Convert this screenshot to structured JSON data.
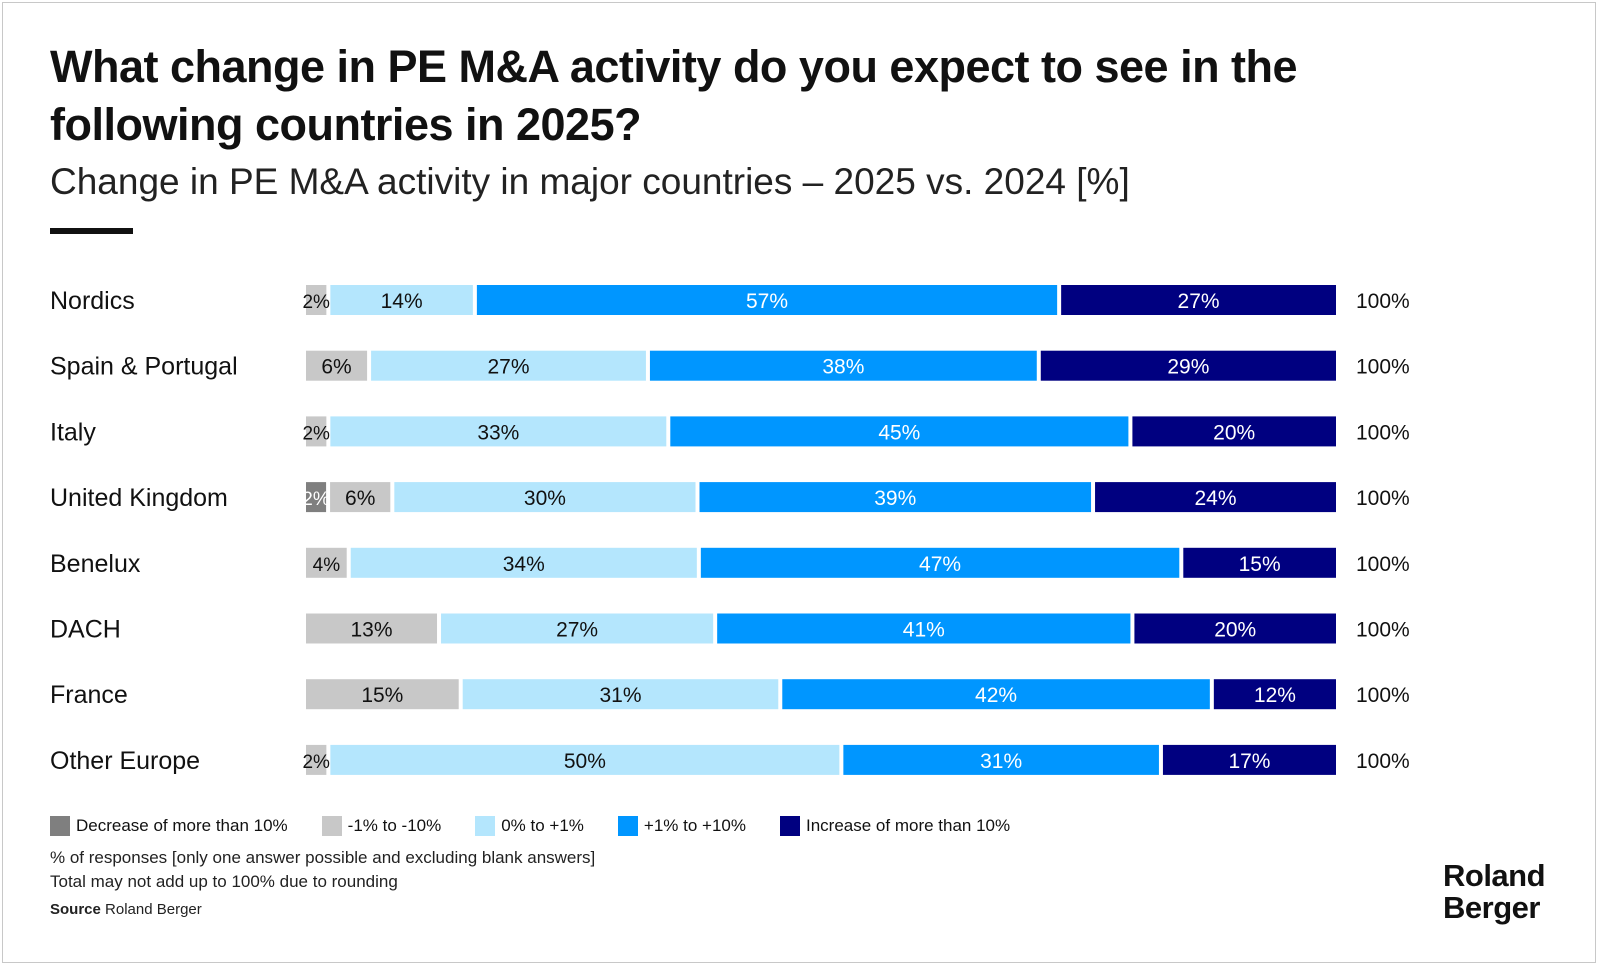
{
  "title": "What change in PE M&A activity do you expect to see in the following countries in 2025?",
  "subtitle": "Change in PE M&A activity in major countries – 2025 vs. 2024 [%]",
  "chart_data": {
    "type": "bar",
    "orientation": "horizontal",
    "stacked": true,
    "categories": [
      "Nordics",
      "Spain & Portugal",
      "Italy",
      "United Kingdom",
      "Benelux",
      "DACH",
      "France",
      "Other Europe"
    ],
    "series": [
      {
        "name": "Decrease of more than 10%",
        "color": "#7f7f7f",
        "text_color": "#ffffff",
        "values": [
          0,
          0,
          0,
          2,
          0,
          0,
          0,
          0
        ]
      },
      {
        "name": "-1% to -10%",
        "color": "#c8c8c8",
        "text_color": "#111111",
        "values": [
          2,
          6,
          2,
          6,
          4,
          13,
          15,
          2
        ]
      },
      {
        "name": "0% to +1%",
        "color": "#b4e6fd",
        "text_color": "#111111",
        "values": [
          14,
          27,
          33,
          30,
          34,
          27,
          31,
          50
        ]
      },
      {
        "name": "+1% to +10%",
        "color": "#0096ff",
        "text_color": "#ffffff",
        "values": [
          57,
          38,
          45,
          39,
          47,
          41,
          42,
          31
        ]
      },
      {
        "name": "Increase of more than 10%",
        "color": "#000080",
        "text_color": "#ffffff",
        "values": [
          27,
          29,
          20,
          24,
          15,
          20,
          12,
          17
        ]
      }
    ],
    "totals": [
      "100%",
      "100%",
      "100%",
      "100%",
      "100%",
      "100%",
      "100%",
      "100%"
    ],
    "value_suffix": "%",
    "legend_position": "bottom",
    "grid": false
  },
  "notes": {
    "responses": "% of responses [only one answer possible and excluding blank answers]",
    "rounding": "Total may not add up to 100% due to rounding",
    "source_label": "Source",
    "source": "Roland Berger"
  },
  "logo": {
    "line1": "Roland",
    "line2": "Berger"
  }
}
